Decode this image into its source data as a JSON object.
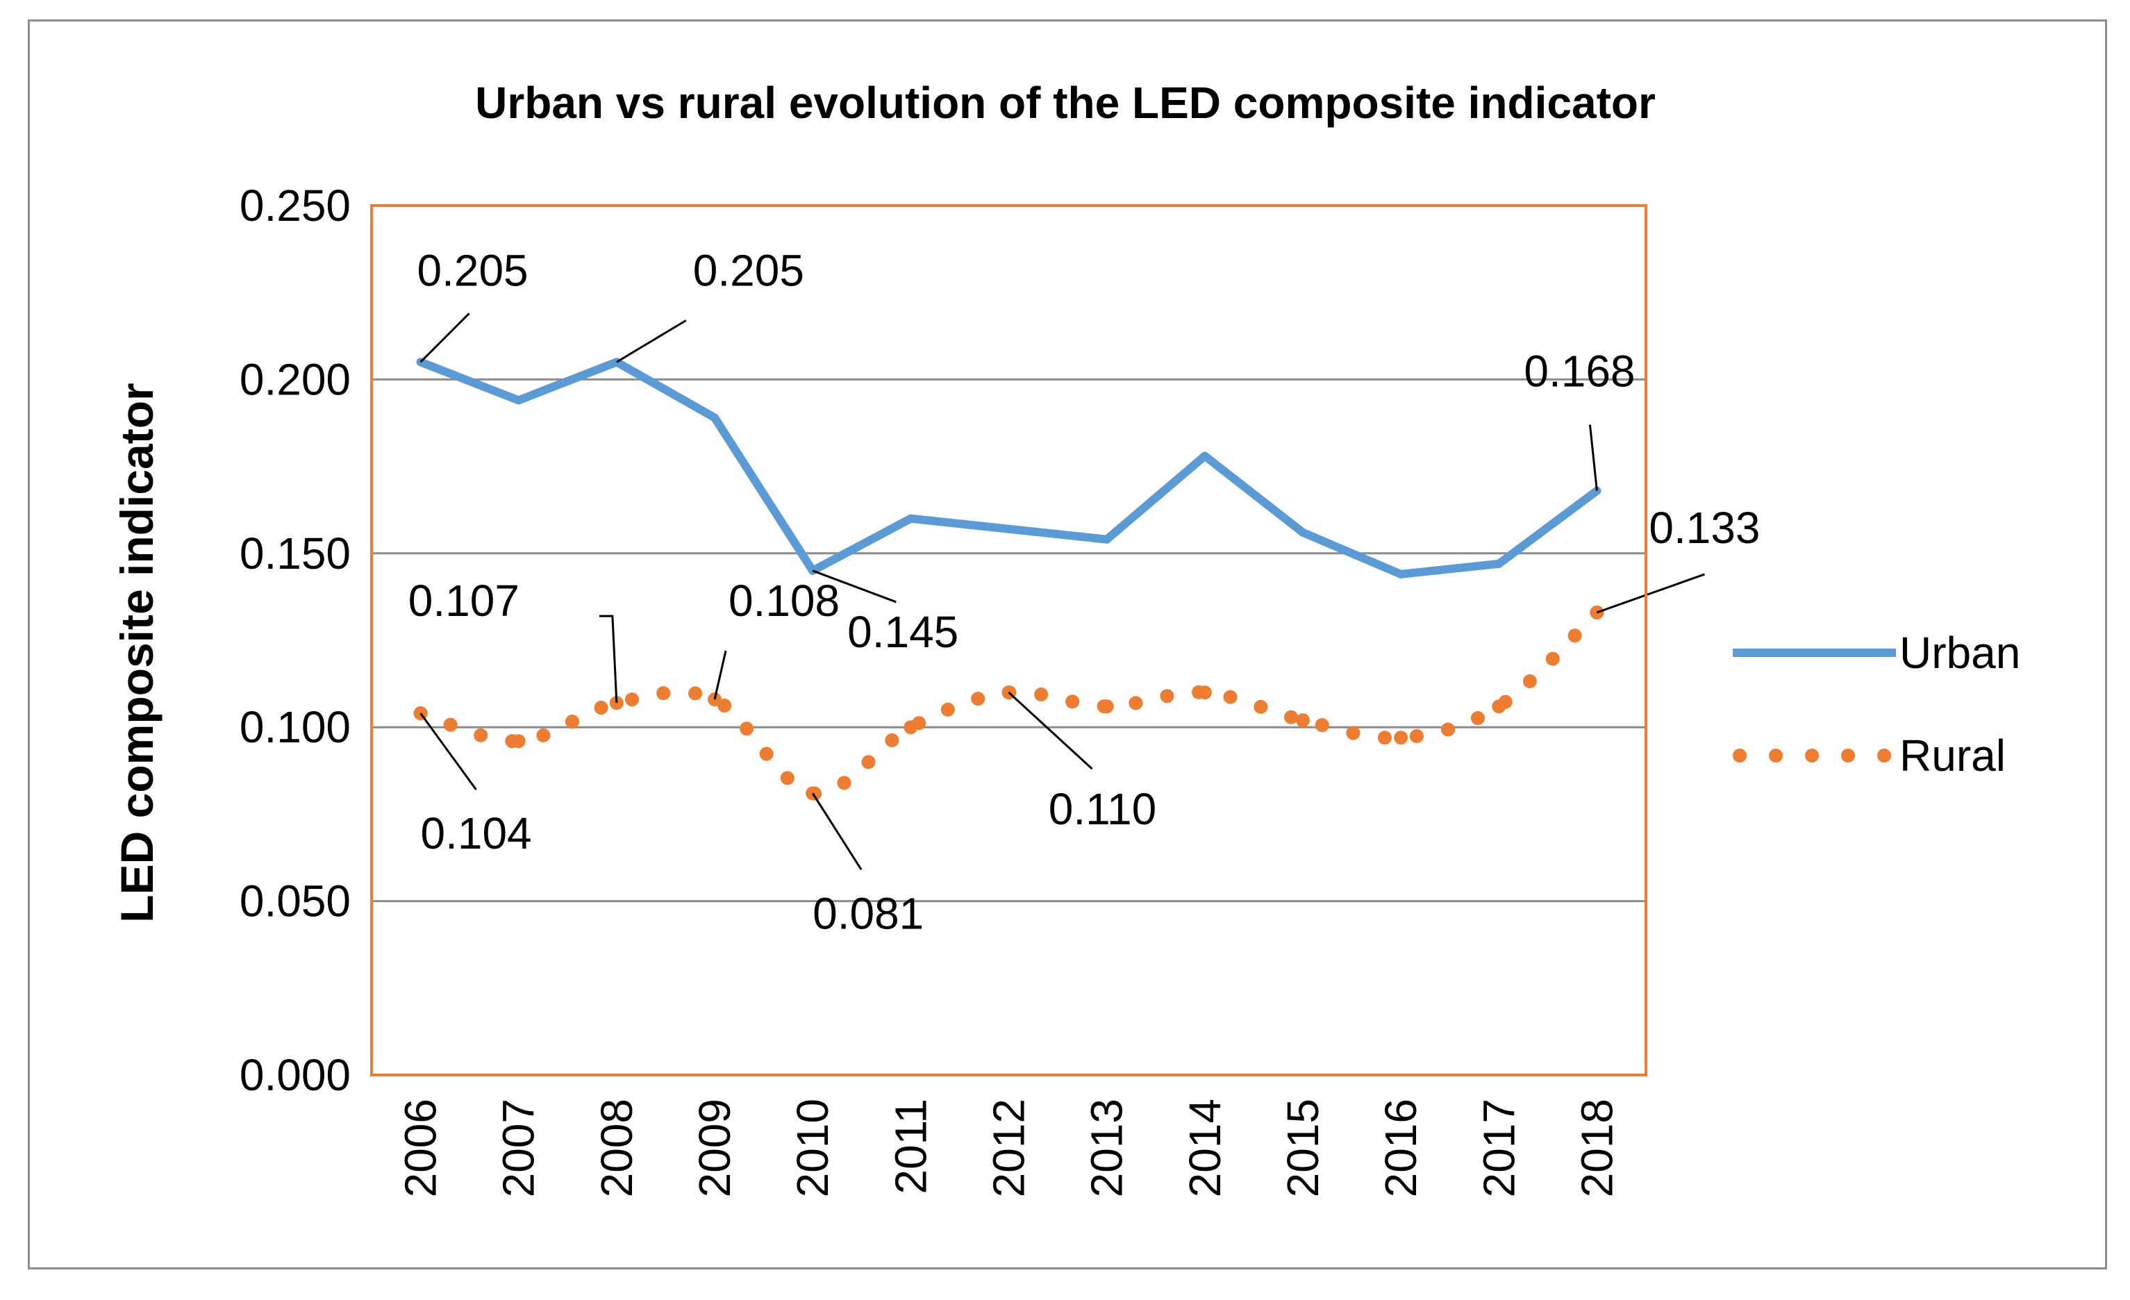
{
  "chart_data": {
    "type": "line",
    "title": "Urban vs rural evolution of the LED composite indicator",
    "xlabel": "",
    "ylabel": "LED composite indicator",
    "categories": [
      "2006",
      "2007",
      "2008",
      "2009",
      "2010",
      "2011",
      "2012",
      "2013",
      "2014",
      "2015",
      "2016",
      "2017",
      "2018"
    ],
    "ylim": [
      0,
      0.25
    ],
    "yticks": [
      0,
      0.05,
      0.1,
      0.15,
      0.2,
      0.25
    ],
    "ytick_labels": [
      "0.000",
      "0.050",
      "0.100",
      "0.150",
      "0.200",
      "0.250"
    ],
    "grid": true,
    "legend_position": "right",
    "series": [
      {
        "name": "Urban",
        "style": "solid",
        "color": "#5B9BD5",
        "values": [
          0.205,
          0.194,
          0.205,
          0.189,
          0.145,
          0.16,
          0.157,
          0.154,
          0.178,
          0.156,
          0.144,
          0.147,
          0.168
        ]
      },
      {
        "name": "Rural",
        "style": "dotted",
        "color": "#ED7D31",
        "values": [
          0.104,
          0.096,
          0.107,
          0.108,
          0.081,
          0.1,
          0.11,
          0.106,
          0.11,
          0.102,
          0.097,
          0.106,
          0.133
        ]
      }
    ],
    "annotations": [
      {
        "series": 0,
        "index": 0,
        "text": "0.205"
      },
      {
        "series": 0,
        "index": 2,
        "text": "0.205"
      },
      {
        "series": 0,
        "index": 4,
        "text": "0.145"
      },
      {
        "series": 0,
        "index": 12,
        "text": "0.168"
      },
      {
        "series": 1,
        "index": 0,
        "text": "0.104"
      },
      {
        "series": 1,
        "index": 2,
        "text": "0.107"
      },
      {
        "series": 1,
        "index": 3,
        "text": "0.108"
      },
      {
        "series": 1,
        "index": 4,
        "text": "0.081"
      },
      {
        "series": 1,
        "index": 6,
        "text": "0.110"
      },
      {
        "series": 1,
        "index": 12,
        "text": "0.133"
      }
    ]
  }
}
